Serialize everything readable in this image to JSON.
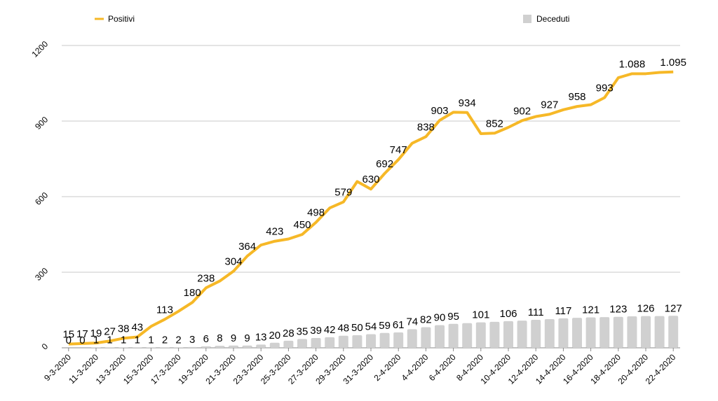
{
  "chart_data": {
    "type": "line+bar",
    "categories": [
      "9-3-2020",
      null,
      "11-3-2020",
      null,
      "13-3-2020",
      null,
      "15-3-2020",
      null,
      "17-3-2020",
      null,
      "19-3-2020",
      null,
      "21-3-2020",
      null,
      "23-3-2020",
      null,
      "25-3-2020",
      null,
      "27-3-2020",
      null,
      "29-3-2020",
      null,
      "31-3-2020",
      null,
      "2-4-2020",
      null,
      "4-4-2020",
      null,
      "6-4-2020",
      null,
      "8-4-2020",
      null,
      "10-4-2020",
      null,
      "12-4-2020",
      null,
      "14-4-2020",
      null,
      "16-4-2020",
      null,
      "18-4-2020",
      null,
      "20-4-2020",
      null,
      "22-4-2020"
    ],
    "series": [
      {
        "name": "Positivi",
        "type": "line",
        "color": "#f6b827",
        "values": [
          15,
          17,
          19,
          27,
          38,
          43,
          85,
          113,
          145,
          180,
          238,
          265,
          304,
          364,
          408,
          423,
          432,
          450,
          498,
          555,
          579,
          660,
          630,
          692,
          747,
          812,
          838,
          903,
          935,
          934,
          850,
          852,
          875,
          902,
          918,
          927,
          945,
          958,
          965,
          993,
          1072,
          1088,
          1088,
          1093,
          1095
        ],
        "value_labels": [
          "15",
          "17",
          "19",
          "27",
          "38",
          "43",
          null,
          "113",
          null,
          "180",
          "238",
          null,
          "304",
          "364",
          null,
          "423",
          null,
          "450",
          "498",
          null,
          "579",
          null,
          "630",
          "692",
          "747",
          null,
          "838",
          "903",
          null,
          "934",
          null,
          "852",
          null,
          "902",
          null,
          "927",
          null,
          "958",
          null,
          "993",
          null,
          "1.088",
          null,
          null,
          "1.095"
        ]
      },
      {
        "name": "Deceduti",
        "type": "bar",
        "color": "#d0d0d0",
        "values": [
          0,
          0,
          1,
          1,
          1,
          1,
          1,
          2,
          2,
          3,
          6,
          8,
          9,
          9,
          13,
          20,
          28,
          35,
          39,
          42,
          48,
          50,
          54,
          59,
          61,
          74,
          82,
          90,
          95,
          98,
          101,
          103,
          106,
          108,
          111,
          114,
          117,
          119,
          121,
          122,
          123,
          125,
          126,
          126,
          127
        ],
        "value_labels": [
          "0",
          "0",
          "1",
          "1",
          "1",
          "1",
          "1",
          "2",
          "2",
          "3",
          "6",
          "8",
          "9",
          "9",
          "13",
          "20",
          "28",
          "35",
          "39",
          "42",
          "48",
          "50",
          "54",
          "59",
          "61",
          "74",
          "82",
          "90",
          "95",
          null,
          "101",
          null,
          "106",
          null,
          "111",
          null,
          "117",
          null,
          "121",
          null,
          "123",
          null,
          "126",
          null,
          "127"
        ]
      }
    ],
    "ylim": [
      0,
      1200
    ],
    "yticks": [
      0,
      300,
      600,
      900,
      1200
    ],
    "grid": true
  }
}
